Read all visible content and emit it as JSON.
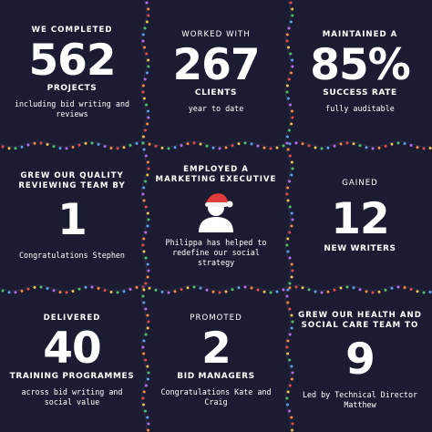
{
  "colors": {
    "background": "#1b1c32",
    "text": "#ffffff",
    "santa_hat": "#e23b3b",
    "lights": [
      "#e84b4b",
      "#f2c14e",
      "#4cc36b",
      "#5aa3f0",
      "#b86df0",
      "#ff8a3d"
    ]
  },
  "tiles": [
    {
      "header": "WE COMPLETED",
      "value": "562",
      "label": "PROJECTS",
      "note": "including bid writing and reviews"
    },
    {
      "header": "WORKED WITH",
      "value": "267",
      "label": "CLIENTS",
      "note": "year to date"
    },
    {
      "header": "MAINTAINED A",
      "value": "85%",
      "label": "SUCCESS RATE",
      "note": "fully auditable"
    },
    {
      "header": "GREW OUR QUALITY REVIEWING TEAM BY",
      "value": "1",
      "note": "Congratulations Stephen"
    },
    {
      "header": "EMPLOYED A MARKETING EXECUTIVE",
      "icon": "person-santa-hat-icon",
      "note": "Philippa has helped to redefine our social strategy"
    },
    {
      "header": "GAINED",
      "value": "12",
      "label": "NEW WRITERS"
    },
    {
      "header": "DELIVERED",
      "value": "40",
      "label": "TRAINING PROGRAMMES",
      "note": "across bid writing and social value"
    },
    {
      "header": "PROMOTED",
      "value": "2",
      "label": "BID MANAGERS",
      "note": "Congratulations Kate and Craig"
    },
    {
      "header": "GREW OUR HEALTH AND SOCIAL CARE TEAM TO",
      "value": "9",
      "note": "Led by Technical Director Matthew"
    }
  ]
}
